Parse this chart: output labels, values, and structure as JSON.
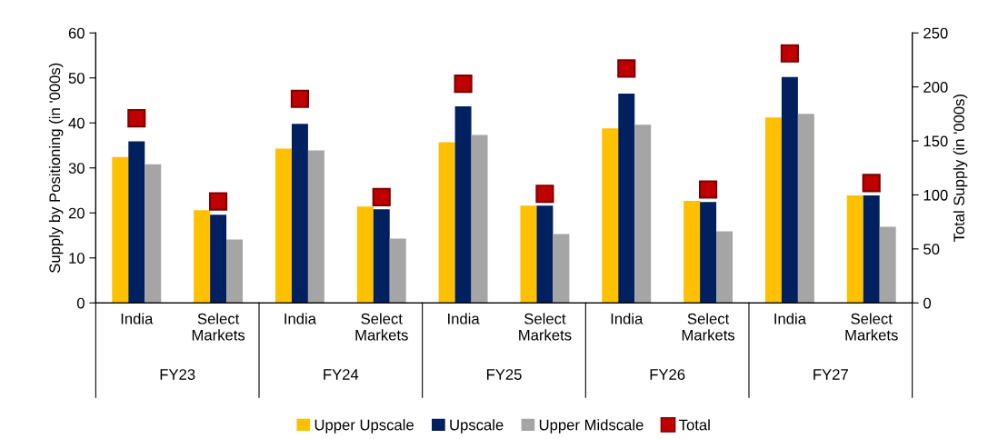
{
  "chart_data": {
    "type": "bar",
    "categories": [
      "India",
      "Select Markets",
      "India",
      "Select Markets",
      "India",
      "Select Markets",
      "India",
      "Select Markets",
      "India",
      "Select Markets"
    ],
    "annotations": [
      "FY23",
      "FY24",
      "FY25",
      "FY26",
      "FY27"
    ],
    "ylabel": "Supply by Positioning (in '000s)",
    "y2label": "Total Supply (in '000s)",
    "ylim": [
      0,
      60
    ],
    "yticks": [
      0,
      10,
      20,
      30,
      40,
      50,
      60
    ],
    "y2lim": [
      0,
      250
    ],
    "y2ticks": [
      0,
      50,
      100,
      150,
      200,
      250
    ],
    "series": [
      {
        "name": "Upper Upscale",
        "color": "#ffc000",
        "values": [
          32.4,
          20.6,
          34.3,
          21.4,
          35.7,
          21.6,
          38.8,
          22.7,
          41.2,
          23.9
        ]
      },
      {
        "name": "Upscale",
        "color": "#002060",
        "values": [
          35.9,
          19.6,
          39.8,
          20.8,
          43.7,
          21.6,
          46.5,
          22.4,
          50.2,
          23.9
        ]
      },
      {
        "name": "Upper Midscale",
        "color": "#a5a5a5",
        "values": [
          30.8,
          14.1,
          33.9,
          14.3,
          37.3,
          15.3,
          39.6,
          15.9,
          42.0,
          16.9
        ]
      },
      {
        "name": "Total",
        "color": "#c00000",
        "type": "scatter",
        "axis": "y2",
        "marker": "square",
        "values": [
          171,
          94,
          189,
          98,
          203,
          101,
          217,
          105,
          231,
          111
        ]
      }
    ],
    "grid": false,
    "legend": "bottom"
  }
}
